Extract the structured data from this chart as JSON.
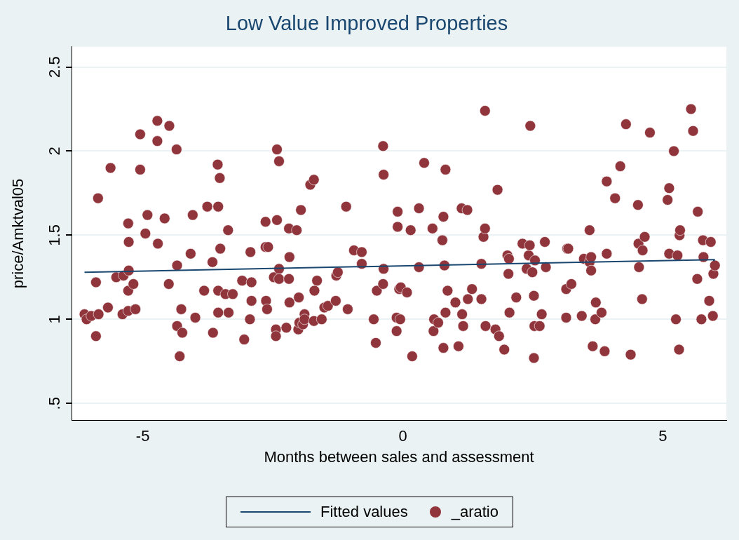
{
  "chart_data": {
    "type": "scatter",
    "title": "Low Value Improved Properties",
    "xlabel": "Months between sales and assessment",
    "ylabel": "price/Amktval05",
    "xlim": [
      -6.37,
      6.22
    ],
    "xticks": [
      -5,
      0,
      5
    ],
    "ylim": [
      0.4,
      2.62
    ],
    "yticks": [
      {
        "value": 0.5,
        "label": ".5"
      },
      1,
      1.5,
      2,
      2.5
    ],
    "grid": "y",
    "legend": "bottom",
    "marker": "circle",
    "series": [
      {
        "name": "Fitted values",
        "type": "line",
        "color": "#1a476f",
        "marker": "none",
        "x": [
          -6.12,
          6.0
        ],
        "values": [
          1.28,
          1.355
        ]
      },
      {
        "name": "_aratio",
        "color": "#90353b",
        "x": [
          -6.12,
          -6.08,
          -5.99,
          -5.9,
          -5.9,
          -5.86,
          -5.85,
          -5.67,
          -5.62,
          -5.51,
          -5.39,
          -5.37,
          -5.28,
          -5.28,
          -5.27,
          -5.27,
          -5.28,
          -5.18,
          -5.14,
          -5.05,
          -5.05,
          -4.95,
          -4.91,
          -4.72,
          -4.72,
          -4.71,
          -4.58,
          -4.5,
          -4.49,
          -4.35,
          -4.34,
          -4.34,
          -4.29,
          -4.26,
          -4.24,
          -4.08,
          -4.04,
          -3.99,
          -3.82,
          -3.76,
          -3.66,
          -3.65,
          -3.56,
          -3.55,
          -3.55,
          -3.55,
          -3.52,
          -3.51,
          -3.41,
          -3.36,
          -3.35,
          -3.27,
          -3.09,
          -3.05,
          -2.94,
          -2.93,
          -2.91,
          -2.91,
          -2.64,
          -2.64,
          -2.63,
          -2.61,
          -2.59,
          -2.48,
          -2.44,
          -2.44,
          -2.42,
          -2.42,
          -2.38,
          -2.38,
          -2.38,
          -2.24,
          -2.19,
          -2.19,
          -2.18,
          -2.18,
          -2.04,
          -2.0,
          -1.96,
          -2.01,
          -1.99,
          -1.92,
          -1.89,
          -1.89,
          -1.78,
          -1.71,
          -1.71,
          -1.7,
          -1.65,
          -1.56,
          -1.51,
          -1.44,
          -1.29,
          -1.28,
          -1.25,
          -1.09,
          -1.06,
          -0.94,
          -0.79,
          -0.79,
          -0.56,
          -0.52,
          -0.5,
          -0.38,
          -0.38,
          -0.37,
          -0.37,
          -0.12,
          -0.12,
          -0.1,
          -0.1,
          -0.07,
          -0.05,
          -0.04,
          0.08,
          0.15,
          0.18,
          0.31,
          0.31,
          0.41,
          0.57,
          0.59,
          0.6,
          0.68,
          0.78,
          0.76,
          0.78,
          0.8,
          0.82,
          0.82,
          0.86,
          1.01,
          1.07,
          1.13,
          1.14,
          1.16,
          1.24,
          1.25,
          1.33,
          1.51,
          1.51,
          1.55,
          1.58,
          1.58,
          1.59,
          1.78,
          1.82,
          1.85,
          1.95,
          2.01,
          2.03,
          2.04,
          2.05,
          2.18,
          2.3,
          2.38,
          2.42,
          2.44,
          2.45,
          2.49,
          2.52,
          2.52,
          2.53,
          2.54,
          2.63,
          2.67,
          2.73,
          2.75,
          3.14,
          3.16,
          3.14,
          3.18,
          3.24,
          3.44,
          3.48,
          3.59,
          3.59,
          3.62,
          3.62,
          3.65,
          3.7,
          3.71,
          3.82,
          3.88,
          3.92,
          3.92,
          4.08,
          4.18,
          4.29,
          4.38,
          4.52,
          4.53,
          4.54,
          4.6,
          4.61,
          4.65,
          4.75,
          5.09,
          5.12,
          5.12,
          5.21,
          5.25,
          5.28,
          5.31,
          5.32,
          5.33,
          5.54,
          5.58,
          5.66,
          5.67,
          5.74,
          5.77,
          5.78,
          5.89,
          5.92,
          5.96,
          5.97,
          6.0
        ],
        "values": [
          1.03,
          1.0,
          1.02,
          0.9,
          1.22,
          1.72,
          1.03,
          1.07,
          1.9,
          1.25,
          1.03,
          1.26,
          1.57,
          1.17,
          1.46,
          1.29,
          1.05,
          1.21,
          1.06,
          2.1,
          1.89,
          1.51,
          1.62,
          2.06,
          2.18,
          1.45,
          1.6,
          1.21,
          2.15,
          2.01,
          1.32,
          0.96,
          0.78,
          1.06,
          0.92,
          1.39,
          1.62,
          1.01,
          1.17,
          1.67,
          1.34,
          0.92,
          1.92,
          1.67,
          1.17,
          1.04,
          1.84,
          1.42,
          1.15,
          1.53,
          1.04,
          1.15,
          1.23,
          0.88,
          1.0,
          1.4,
          1.22,
          1.11,
          1.58,
          1.43,
          1.11,
          1.06,
          1.43,
          1.25,
          0.94,
          0.9,
          1.59,
          2.01,
          1.94,
          1.3,
          1.24,
          0.95,
          1.54,
          1.24,
          1.37,
          1.1,
          1.53,
          1.13,
          1.65,
          0.94,
          0.98,
          0.97,
          1.03,
          1.0,
          1.8,
          1.83,
          0.99,
          1.17,
          1.23,
          1.0,
          1.07,
          1.08,
          1.11,
          1.26,
          1.28,
          1.67,
          1.06,
          1.41,
          1.4,
          1.33,
          1.0,
          0.86,
          1.17,
          2.03,
          1.21,
          1.86,
          1.3,
          1.01,
          0.93,
          1.64,
          1.55,
          1.18,
          1.0,
          1.19,
          1.16,
          1.53,
          0.78,
          1.66,
          1.31,
          1.93,
          1.54,
          0.93,
          1.0,
          0.98,
          1.61,
          1.47,
          0.83,
          1.32,
          1.04,
          1.89,
          1.17,
          1.1,
          0.84,
          1.66,
          1.03,
          0.96,
          1.65,
          1.12,
          1.18,
          1.33,
          1.12,
          1.49,
          1.54,
          2.24,
          0.96,
          0.94,
          1.77,
          0.9,
          0.82,
          1.38,
          1.27,
          1.36,
          1.04,
          1.13,
          1.45,
          1.3,
          1.38,
          1.44,
          2.15,
          1.28,
          0.77,
          1.14,
          0.96,
          1.35,
          0.96,
          1.03,
          1.46,
          1.31,
          1.18,
          1.42,
          1.01,
          1.42,
          1.21,
          1.02,
          1.36,
          1.53,
          1.34,
          1.37,
          1.29,
          0.84,
          1.0,
          1.1,
          1.04,
          0.81,
          1.82,
          1.39,
          1.72,
          1.91,
          2.16,
          0.79,
          1.68,
          1.45,
          1.31,
          1.12,
          1.41,
          1.49,
          2.11,
          1.71,
          1.78,
          1.39,
          2.0,
          1.0,
          1.38,
          0.82,
          1.5,
          1.53,
          2.25,
          2.12,
          1.24,
          1.64,
          1.0,
          1.47,
          1.37,
          1.11,
          1.46,
          1.02,
          1.27,
          1.32
        ]
      }
    ]
  }
}
